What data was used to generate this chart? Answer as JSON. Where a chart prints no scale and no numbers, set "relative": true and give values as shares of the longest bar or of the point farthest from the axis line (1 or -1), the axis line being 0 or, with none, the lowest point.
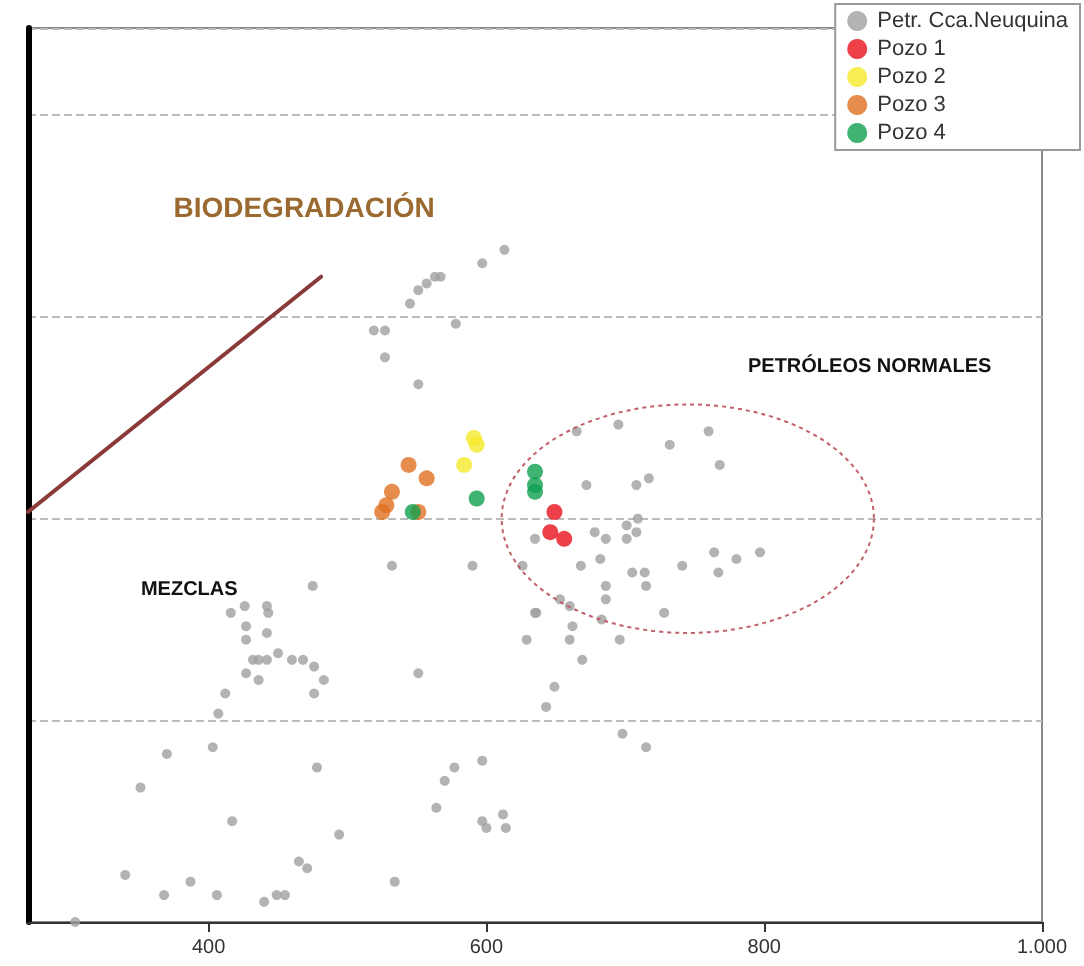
{
  "chart_data": {
    "type": "scatter",
    "relative": true,
    "annotations": [
      "BIODEGRADACIÓN",
      "PETRÓLEOS NORMALES",
      "MEZCLAS"
    ],
    "xlim": [
      270,
      1000
    ],
    "xticks": [
      400,
      600,
      800,
      {
        "value": 1000,
        "label": "1.000"
      }
    ],
    "grid": "y",
    "legend": "top right",
    "marker": "circle",
    "series": [
      {
        "name": "Petr. Cca.Neuquina",
        "color": "#a0a0a0",
        "x": [
          613,
          597,
          563,
          567,
          557,
          551,
          545,
          578,
          519,
          527,
          527,
          551,
          665,
          695,
          732,
          760,
          768,
          672,
          708,
          717,
          709,
          701,
          708,
          678,
          686,
          701,
          635,
          626,
          668,
          682,
          705,
          714,
          741,
          764,
          767,
          780,
          797,
          532,
          590,
          653,
          660,
          635,
          686,
          686,
          715,
          728,
          683,
          662,
          629,
          660,
          669,
          649,
          643,
          696,
          698,
          715,
          636,
          475,
          426,
          416,
          442,
          443,
          427,
          442,
          427,
          432,
          436,
          442,
          450,
          460,
          468,
          476,
          427,
          436,
          483,
          476,
          551,
          412,
          407,
          403,
          370,
          478,
          351,
          570,
          577,
          597,
          564,
          417,
          494,
          597,
          600,
          612,
          614,
          465,
          471,
          340,
          387,
          368,
          406,
          440,
          449,
          455,
          534,
          304
        ],
        "values": [
          1.0,
          0.98,
          0.96,
          0.96,
          0.95,
          0.94,
          0.92,
          0.89,
          0.88,
          0.88,
          0.84,
          0.8,
          0.73,
          0.74,
          0.71,
          0.73,
          0.68,
          0.65,
          0.65,
          0.66,
          0.6,
          0.59,
          0.58,
          0.58,
          0.57,
          0.57,
          0.57,
          0.53,
          0.53,
          0.54,
          0.52,
          0.52,
          0.53,
          0.55,
          0.52,
          0.54,
          0.55,
          0.53,
          0.53,
          0.48,
          0.47,
          0.46,
          0.5,
          0.48,
          0.5,
          0.46,
          0.45,
          0.44,
          0.42,
          0.42,
          0.39,
          0.35,
          0.32,
          0.42,
          0.28,
          0.26,
          0.46,
          0.5,
          0.47,
          0.46,
          0.47,
          0.46,
          0.44,
          0.43,
          0.42,
          0.39,
          0.39,
          0.39,
          0.4,
          0.39,
          0.39,
          0.38,
          0.37,
          0.36,
          0.36,
          0.34,
          0.37,
          0.34,
          0.31,
          0.26,
          0.25,
          0.23,
          0.2,
          0.21,
          0.23,
          0.24,
          0.17,
          0.15,
          0.13,
          0.15,
          0.14,
          0.16,
          0.14,
          0.09,
          0.08,
          0.07,
          0.06,
          0.04,
          0.04,
          0.03,
          0.04,
          0.04,
          0.06,
          0.0
        ]
      },
      {
        "name": "Pozo 1",
        "color": "#e8101a",
        "x": [
          649,
          646,
          656
        ],
        "values": [
          0.61,
          0.58,
          0.57
        ]
      },
      {
        "name": "Pozo 2",
        "color": "#f5e92a",
        "x": [
          591,
          593,
          584
        ],
        "values": [
          0.72,
          0.71,
          0.68
        ]
      },
      {
        "name": "Pozo 3",
        "color": "#e07020",
        "x": [
          544,
          557,
          532,
          528,
          525,
          551
        ],
        "values": [
          0.68,
          0.66,
          0.64,
          0.62,
          0.61,
          0.61
        ]
      },
      {
        "name": "Pozo 4",
        "color": "#10a050",
        "x": [
          547,
          593,
          635,
          635,
          635
        ],
        "values": [
          0.61,
          0.63,
          0.67,
          0.65,
          0.64
        ]
      },
      {
        "type": "line",
        "color": "#8b3a3a",
        "line_style": "solid",
        "marker": "none",
        "x": [
          270,
          481
        ],
        "values": [
          0.61,
          0.96
        ]
      }
    ]
  }
}
